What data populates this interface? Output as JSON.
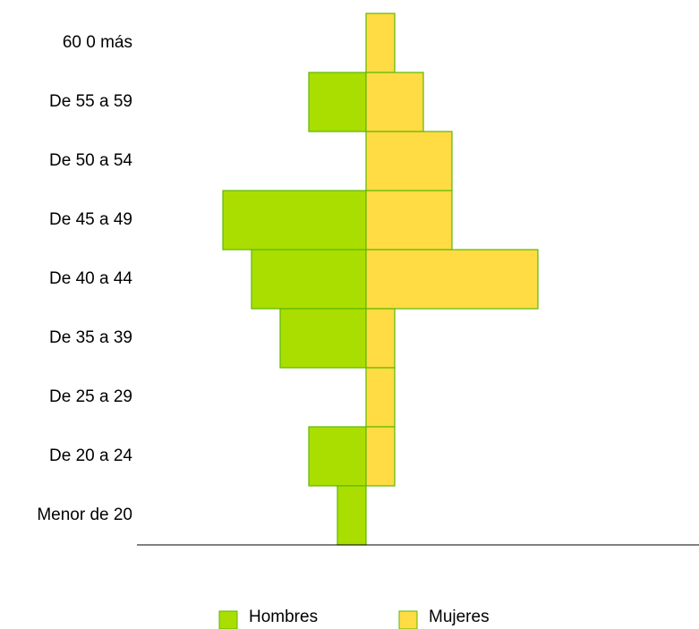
{
  "chart_data": {
    "type": "pyramid",
    "categories": [
      "60 0 más",
      "De 55 a 59",
      "De 50 a  54",
      "De 45 a 49",
      "De 40 a 44",
      "De 35 a 39",
      "De 25 a 29",
      "De 20 a 24",
      "Menor de 20"
    ],
    "series": [
      {
        "name": "Hombres",
        "color": "#aade00",
        "values": [
          0,
          2,
          0,
          5,
          4,
          3,
          0,
          2,
          1
        ]
      },
      {
        "name": "Mujeres",
        "color": "#ffdc44",
        "values": [
          1,
          2,
          3,
          3,
          6,
          1,
          1,
          1,
          0
        ]
      }
    ],
    "xlim": [
      -8,
      11.625
    ],
    "legend": "bottom"
  }
}
